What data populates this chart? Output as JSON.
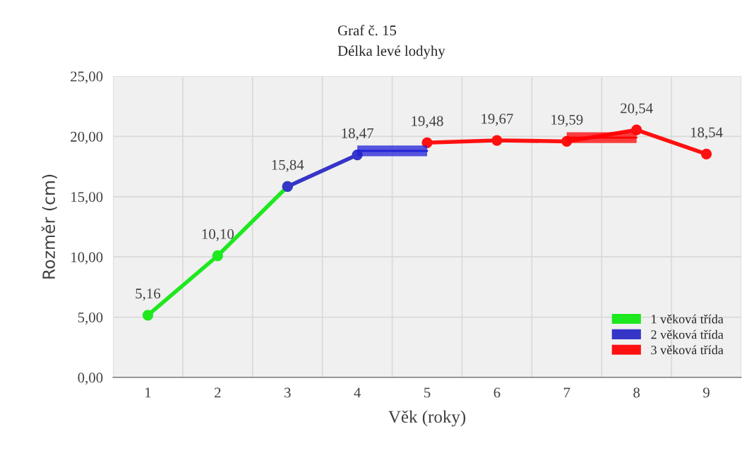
{
  "chart_data": {
    "type": "line",
    "title": "Graf č. 15",
    "subtitle": "Délka levé lodyhy",
    "xlabel": "Věk (roky)",
    "ylabel": "Rozměr (cm)",
    "categories": [
      "1",
      "2",
      "3",
      "4",
      "5",
      "6",
      "7",
      "8",
      "9"
    ],
    "series": [
      {
        "name": "1 věková třída",
        "color": "#1ee81e",
        "values": [
          5.16,
          10.1,
          15.84,
          null,
          null,
          null,
          null,
          null,
          null
        ],
        "value_labels": [
          "5,16",
          "10,10",
          null,
          null,
          null,
          null,
          null,
          null,
          null
        ]
      },
      {
        "name": "2 věková třída",
        "color": "#3535c8",
        "values": [
          null,
          null,
          15.84,
          18.47,
          null,
          null,
          null,
          null,
          null
        ],
        "value_labels": [
          null,
          null,
          "15,84",
          "18,47",
          null,
          null,
          null,
          null,
          null
        ]
      },
      {
        "name": "3 věková třída",
        "color": "#ff1010",
        "values": [
          null,
          null,
          null,
          null,
          19.48,
          19.67,
          19.59,
          20.54,
          18.54
        ],
        "value_labels": [
          null,
          null,
          null,
          null,
          "19,48",
          "19,67",
          "19,59",
          "20,54",
          "18,54"
        ]
      },
      {
        "type": "line",
        "marker": "none",
        "color": "#2020d8",
        "values": [
          null,
          null,
          null,
          18.8,
          18.8,
          null,
          null,
          null,
          null
        ],
        "lower": [
          null,
          null,
          null,
          18.35,
          18.35,
          null,
          null,
          null,
          null
        ],
        "upper": [
          null,
          null,
          null,
          19.25,
          19.25,
          null,
          null,
          null,
          null
        ]
      },
      {
        "type": "line",
        "marker": "none",
        "color": "#ff0000",
        "values": [
          null,
          null,
          null,
          null,
          null,
          null,
          19.9,
          19.9,
          null
        ],
        "lower": [
          null,
          null,
          null,
          null,
          null,
          null,
          19.45,
          19.45,
          null
        ],
        "upper": [
          null,
          null,
          null,
          null,
          null,
          null,
          20.35,
          20.35,
          null
        ]
      }
    ],
    "ylim": [
      0,
      25
    ],
    "yticks": [
      {
        "value": 0,
        "label": "0,00"
      },
      {
        "value": 5,
        "label": "5,00"
      },
      {
        "value": 10,
        "label": "10,00"
      },
      {
        "value": 15,
        "label": "15,00"
      },
      {
        "value": 20,
        "label": "20,00"
      },
      {
        "value": 25,
        "label": "25,00"
      }
    ],
    "grid": true,
    "legend": "bottom right",
    "marker": "circle"
  }
}
